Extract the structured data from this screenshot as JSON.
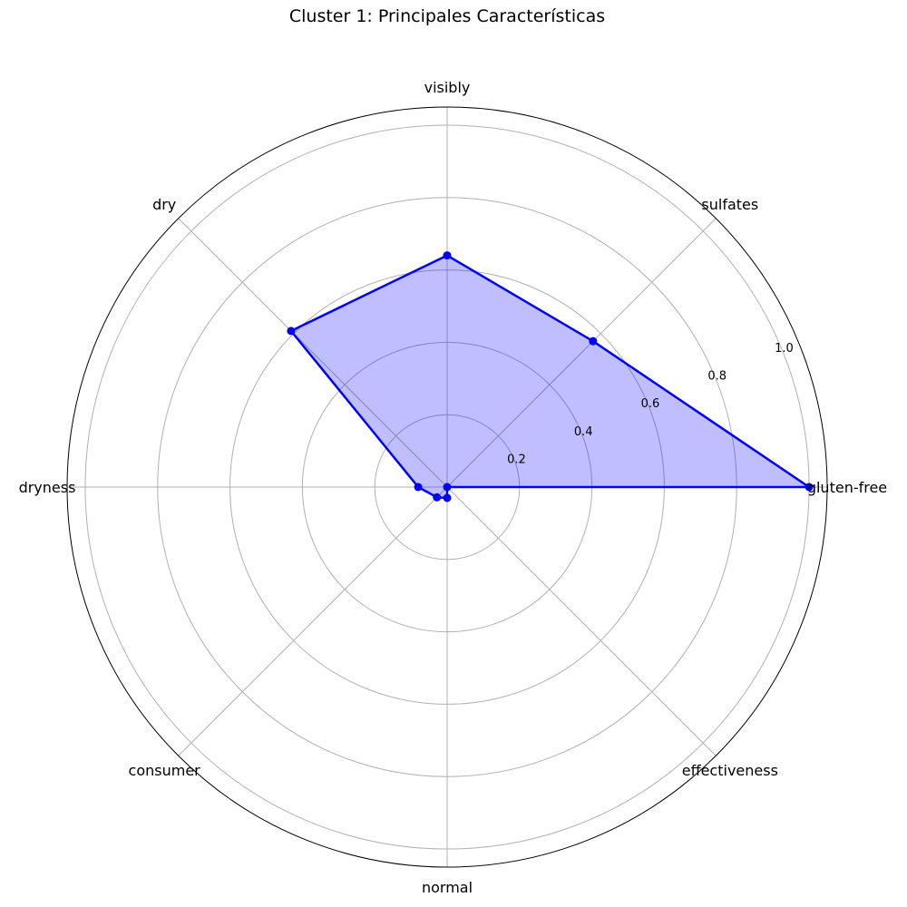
{
  "chart_data": {
    "type": "radar",
    "title": "Cluster 1: Principales Características",
    "categories": [
      "gluten-free",
      "sulfates",
      "visibly",
      "dry",
      "dryness",
      "consumer",
      "normal",
      "effectiveness"
    ],
    "series": [
      {
        "values": [
          1.0,
          0.57,
          0.64,
          0.61,
          0.08,
          0.04,
          0.03,
          0.0
        ],
        "color": "#0000ff",
        "fill_color": "#0000ff"
      }
    ],
    "rlim": [
      0,
      1.05
    ],
    "r_ticks": [
      0.2,
      0.4,
      0.6,
      0.8,
      1.0
    ],
    "r_tick_labels": [
      "0.2",
      "0.4",
      "0.6",
      "0.8",
      "1.0"
    ],
    "grid": true,
    "colors": {
      "grid": "#b0b0b0",
      "outline": "#000000"
    }
  }
}
